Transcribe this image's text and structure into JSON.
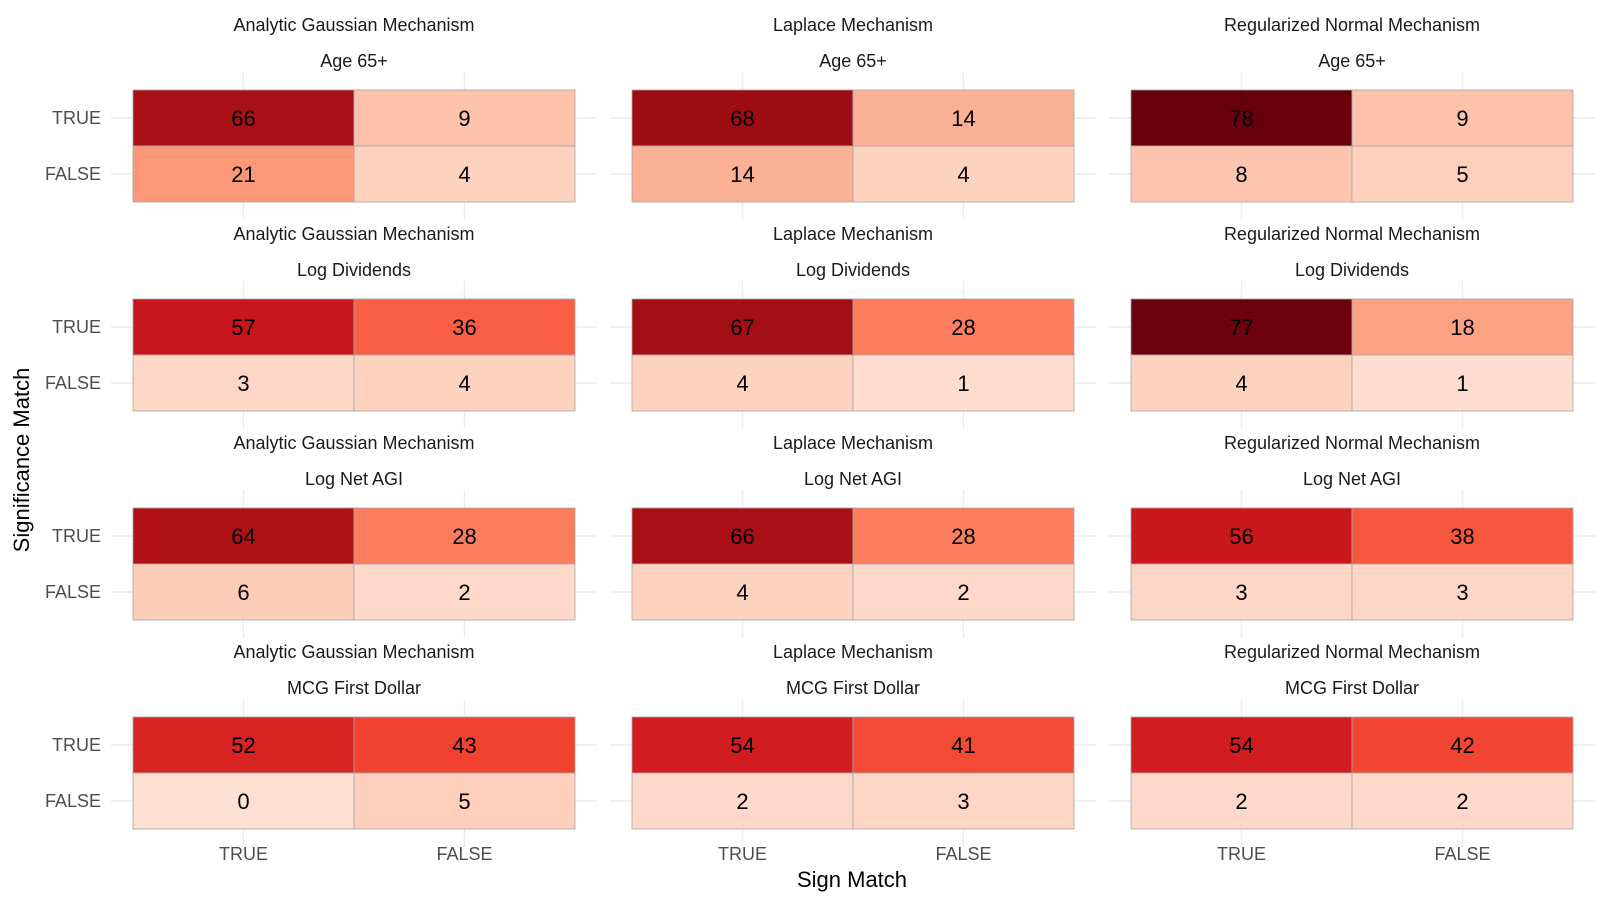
{
  "chart_data": {
    "type": "heatmap",
    "xlabel": "Sign Match",
    "ylabel": "Significance Match",
    "x_categories": [
      "TRUE",
      "FALSE"
    ],
    "y_categories": [
      "TRUE",
      "FALSE"
    ],
    "color_scale": {
      "palette": "Reds",
      "low": "#fee0d2",
      "high": "#67000d",
      "domain": [
        0,
        78
      ]
    },
    "grid": true,
    "legend": "none",
    "facet_rows": [
      "Age 65+",
      "Log Dividends",
      "Log Net AGI",
      "MCG First Dollar"
    ],
    "facet_cols": [
      "Analytic Gaussian Mechanism",
      "Laplace Mechanism",
      "Regularized Normal Mechanism"
    ],
    "panels": [
      {
        "mechanism": "Analytic Gaussian Mechanism",
        "variable": "Age 65+",
        "values": [
          [
            66,
            9
          ],
          [
            21,
            4
          ]
        ]
      },
      {
        "mechanism": "Laplace Mechanism",
        "variable": "Age 65+",
        "values": [
          [
            68,
            14
          ],
          [
            14,
            4
          ]
        ]
      },
      {
        "mechanism": "Regularized Normal Mechanism",
        "variable": "Age 65+",
        "values": [
          [
            78,
            9
          ],
          [
            8,
            5
          ]
        ]
      },
      {
        "mechanism": "Analytic Gaussian Mechanism",
        "variable": "Log Dividends",
        "values": [
          [
            57,
            36
          ],
          [
            3,
            4
          ]
        ]
      },
      {
        "mechanism": "Laplace Mechanism",
        "variable": "Log Dividends",
        "values": [
          [
            67,
            28
          ],
          [
            4,
            1
          ]
        ]
      },
      {
        "mechanism": "Regularized Normal Mechanism",
        "variable": "Log Dividends",
        "values": [
          [
            77,
            18
          ],
          [
            4,
            1
          ]
        ]
      },
      {
        "mechanism": "Analytic Gaussian Mechanism",
        "variable": "Log Net AGI",
        "values": [
          [
            64,
            28
          ],
          [
            6,
            2
          ]
        ]
      },
      {
        "mechanism": "Laplace Mechanism",
        "variable": "Log Net AGI",
        "values": [
          [
            66,
            28
          ],
          [
            4,
            2
          ]
        ]
      },
      {
        "mechanism": "Regularized Normal Mechanism",
        "variable": "Log Net AGI",
        "values": [
          [
            56,
            38
          ],
          [
            3,
            3
          ]
        ]
      },
      {
        "mechanism": "Analytic Gaussian Mechanism",
        "variable": "MCG First Dollar",
        "values": [
          [
            52,
            43
          ],
          [
            0,
            5
          ]
        ]
      },
      {
        "mechanism": "Laplace Mechanism",
        "variable": "MCG First Dollar",
        "values": [
          [
            54,
            41
          ],
          [
            2,
            3
          ]
        ]
      },
      {
        "mechanism": "Regularized Normal Mechanism",
        "variable": "MCG First Dollar",
        "values": [
          [
            54,
            42
          ],
          [
            2,
            2
          ]
        ]
      }
    ]
  }
}
